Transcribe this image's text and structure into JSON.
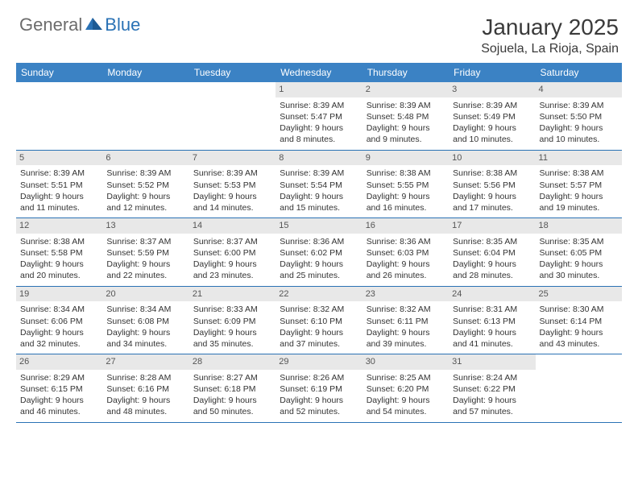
{
  "logo": {
    "general": "General",
    "blue": "Blue"
  },
  "title": {
    "month": "January 2025",
    "location": "Sojuela, La Rioja, Spain"
  },
  "colors": {
    "header_bg": "#3b82c4",
    "header_text": "#ffffff",
    "border": "#2a72b5",
    "daynum_bg": "#e8e8e8",
    "logo_gray": "#6c6c6c",
    "logo_blue": "#2a72b5"
  },
  "day_names": [
    "Sunday",
    "Monday",
    "Tuesday",
    "Wednesday",
    "Thursday",
    "Friday",
    "Saturday"
  ],
  "weeks": [
    [
      null,
      null,
      null,
      {
        "n": "1",
        "sr": "Sunrise: 8:39 AM",
        "ss": "Sunset: 5:47 PM",
        "d1": "Daylight: 9 hours",
        "d2": "and 8 minutes."
      },
      {
        "n": "2",
        "sr": "Sunrise: 8:39 AM",
        "ss": "Sunset: 5:48 PM",
        "d1": "Daylight: 9 hours",
        "d2": "and 9 minutes."
      },
      {
        "n": "3",
        "sr": "Sunrise: 8:39 AM",
        "ss": "Sunset: 5:49 PM",
        "d1": "Daylight: 9 hours",
        "d2": "and 10 minutes."
      },
      {
        "n": "4",
        "sr": "Sunrise: 8:39 AM",
        "ss": "Sunset: 5:50 PM",
        "d1": "Daylight: 9 hours",
        "d2": "and 10 minutes."
      }
    ],
    [
      {
        "n": "5",
        "sr": "Sunrise: 8:39 AM",
        "ss": "Sunset: 5:51 PM",
        "d1": "Daylight: 9 hours",
        "d2": "and 11 minutes."
      },
      {
        "n": "6",
        "sr": "Sunrise: 8:39 AM",
        "ss": "Sunset: 5:52 PM",
        "d1": "Daylight: 9 hours",
        "d2": "and 12 minutes."
      },
      {
        "n": "7",
        "sr": "Sunrise: 8:39 AM",
        "ss": "Sunset: 5:53 PM",
        "d1": "Daylight: 9 hours",
        "d2": "and 14 minutes."
      },
      {
        "n": "8",
        "sr": "Sunrise: 8:39 AM",
        "ss": "Sunset: 5:54 PM",
        "d1": "Daylight: 9 hours",
        "d2": "and 15 minutes."
      },
      {
        "n": "9",
        "sr": "Sunrise: 8:38 AM",
        "ss": "Sunset: 5:55 PM",
        "d1": "Daylight: 9 hours",
        "d2": "and 16 minutes."
      },
      {
        "n": "10",
        "sr": "Sunrise: 8:38 AM",
        "ss": "Sunset: 5:56 PM",
        "d1": "Daylight: 9 hours",
        "d2": "and 17 minutes."
      },
      {
        "n": "11",
        "sr": "Sunrise: 8:38 AM",
        "ss": "Sunset: 5:57 PM",
        "d1": "Daylight: 9 hours",
        "d2": "and 19 minutes."
      }
    ],
    [
      {
        "n": "12",
        "sr": "Sunrise: 8:38 AM",
        "ss": "Sunset: 5:58 PM",
        "d1": "Daylight: 9 hours",
        "d2": "and 20 minutes."
      },
      {
        "n": "13",
        "sr": "Sunrise: 8:37 AM",
        "ss": "Sunset: 5:59 PM",
        "d1": "Daylight: 9 hours",
        "d2": "and 22 minutes."
      },
      {
        "n": "14",
        "sr": "Sunrise: 8:37 AM",
        "ss": "Sunset: 6:00 PM",
        "d1": "Daylight: 9 hours",
        "d2": "and 23 minutes."
      },
      {
        "n": "15",
        "sr": "Sunrise: 8:36 AM",
        "ss": "Sunset: 6:02 PM",
        "d1": "Daylight: 9 hours",
        "d2": "and 25 minutes."
      },
      {
        "n": "16",
        "sr": "Sunrise: 8:36 AM",
        "ss": "Sunset: 6:03 PM",
        "d1": "Daylight: 9 hours",
        "d2": "and 26 minutes."
      },
      {
        "n": "17",
        "sr": "Sunrise: 8:35 AM",
        "ss": "Sunset: 6:04 PM",
        "d1": "Daylight: 9 hours",
        "d2": "and 28 minutes."
      },
      {
        "n": "18",
        "sr": "Sunrise: 8:35 AM",
        "ss": "Sunset: 6:05 PM",
        "d1": "Daylight: 9 hours",
        "d2": "and 30 minutes."
      }
    ],
    [
      {
        "n": "19",
        "sr": "Sunrise: 8:34 AM",
        "ss": "Sunset: 6:06 PM",
        "d1": "Daylight: 9 hours",
        "d2": "and 32 minutes."
      },
      {
        "n": "20",
        "sr": "Sunrise: 8:34 AM",
        "ss": "Sunset: 6:08 PM",
        "d1": "Daylight: 9 hours",
        "d2": "and 34 minutes."
      },
      {
        "n": "21",
        "sr": "Sunrise: 8:33 AM",
        "ss": "Sunset: 6:09 PM",
        "d1": "Daylight: 9 hours",
        "d2": "and 35 minutes."
      },
      {
        "n": "22",
        "sr": "Sunrise: 8:32 AM",
        "ss": "Sunset: 6:10 PM",
        "d1": "Daylight: 9 hours",
        "d2": "and 37 minutes."
      },
      {
        "n": "23",
        "sr": "Sunrise: 8:32 AM",
        "ss": "Sunset: 6:11 PM",
        "d1": "Daylight: 9 hours",
        "d2": "and 39 minutes."
      },
      {
        "n": "24",
        "sr": "Sunrise: 8:31 AM",
        "ss": "Sunset: 6:13 PM",
        "d1": "Daylight: 9 hours",
        "d2": "and 41 minutes."
      },
      {
        "n": "25",
        "sr": "Sunrise: 8:30 AM",
        "ss": "Sunset: 6:14 PM",
        "d1": "Daylight: 9 hours",
        "d2": "and 43 minutes."
      }
    ],
    [
      {
        "n": "26",
        "sr": "Sunrise: 8:29 AM",
        "ss": "Sunset: 6:15 PM",
        "d1": "Daylight: 9 hours",
        "d2": "and 46 minutes."
      },
      {
        "n": "27",
        "sr": "Sunrise: 8:28 AM",
        "ss": "Sunset: 6:16 PM",
        "d1": "Daylight: 9 hours",
        "d2": "and 48 minutes."
      },
      {
        "n": "28",
        "sr": "Sunrise: 8:27 AM",
        "ss": "Sunset: 6:18 PM",
        "d1": "Daylight: 9 hours",
        "d2": "and 50 minutes."
      },
      {
        "n": "29",
        "sr": "Sunrise: 8:26 AM",
        "ss": "Sunset: 6:19 PM",
        "d1": "Daylight: 9 hours",
        "d2": "and 52 minutes."
      },
      {
        "n": "30",
        "sr": "Sunrise: 8:25 AM",
        "ss": "Sunset: 6:20 PM",
        "d1": "Daylight: 9 hours",
        "d2": "and 54 minutes."
      },
      {
        "n": "31",
        "sr": "Sunrise: 8:24 AM",
        "ss": "Sunset: 6:22 PM",
        "d1": "Daylight: 9 hours",
        "d2": "and 57 minutes."
      },
      null
    ]
  ]
}
